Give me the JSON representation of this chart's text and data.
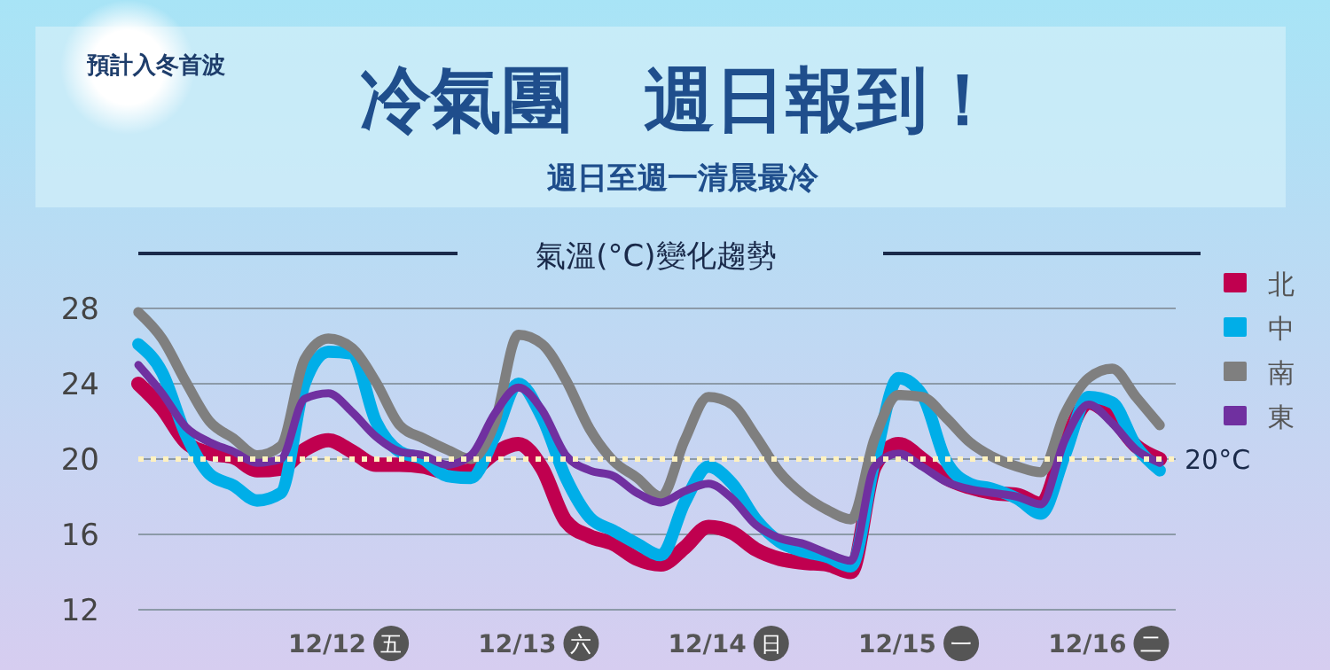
{
  "chart_data": {
    "type": "line",
    "title": "冷氣團　週日報到！",
    "subtitle": "週日至週一清晨最冷",
    "annotations": [
      "預計入冬首波",
      "氣溫(°C)變化趨勢"
    ],
    "categories": [
      null,
      null,
      null,
      null,
      null,
      null,
      null,
      null,
      null,
      "12/12 五",
      null,
      null,
      null,
      null,
      null,
      null,
      null,
      "12/13 六",
      null,
      null,
      null,
      null,
      null,
      null,
      null,
      "12/14 日",
      null,
      null,
      null,
      null,
      null,
      null,
      null,
      "12/15 一",
      null,
      null,
      null,
      null,
      null,
      null,
      null,
      "12/16 二",
      null,
      null
    ],
    "ylim": [
      12,
      28
    ],
    "yticks": [
      12,
      16,
      20,
      24,
      28
    ],
    "grid": "y",
    "legend": "top right",
    "line_style": "solid",
    "marker": "none",
    "ref_lines": [
      {
        "axis": "y",
        "value": 20,
        "label": "20°C",
        "color": "#fff2c0",
        "line_style": "dotted"
      }
    ],
    "series": [
      {
        "name": "北",
        "color": "#c0004f",
        "values": [
          24.0,
          22.7,
          20.9,
          20.3,
          20.1,
          19.4,
          19.5,
          20.5,
          21.0,
          20.4,
          19.7,
          19.7,
          19.6,
          19.3,
          19.4,
          20.3,
          20.8,
          19.5,
          16.7,
          15.9,
          15.5,
          14.7,
          14.4,
          15.3,
          16.4,
          16.1,
          15.2,
          14.7,
          14.5,
          14.4,
          14.0,
          19.6,
          20.8,
          20.0,
          19.0,
          18.5,
          18.2,
          18.1,
          17.6,
          20.8,
          23.0,
          22.2,
          20.7,
          20.0
        ]
      },
      {
        "name": "中",
        "color": "#00aee8",
        "values": [
          26.1,
          24.6,
          21.3,
          19.2,
          18.6,
          17.8,
          18.2,
          24.0,
          25.7,
          25.6,
          22.0,
          20.4,
          20.0,
          19.1,
          19.0,
          21.2,
          24.0,
          22.2,
          19.0,
          16.9,
          16.2,
          15.5,
          14.9,
          17.7,
          19.6,
          18.7,
          16.8,
          15.6,
          15.1,
          14.8,
          14.3,
          19.9,
          24.3,
          23.4,
          19.9,
          18.7,
          18.4,
          17.9,
          17.1,
          20.2,
          23.3,
          23.0,
          20.7,
          19.4
        ]
      },
      {
        "name": "南",
        "color": "#7f7f7f",
        "values": [
          27.8,
          26.4,
          24.1,
          22.0,
          21.1,
          20.2,
          20.7,
          25.3,
          26.4,
          25.9,
          24.1,
          21.8,
          21.1,
          20.5,
          20.0,
          21.9,
          26.6,
          26.1,
          24.2,
          21.6,
          19.9,
          19.0,
          18.0,
          21.0,
          23.3,
          22.9,
          21.2,
          19.3,
          18.1,
          17.3,
          16.8,
          21.1,
          23.4,
          23.3,
          22.2,
          20.9,
          20.1,
          19.6,
          19.3,
          22.4,
          24.3,
          24.8,
          23.3,
          21.8
        ]
      },
      {
        "name": "東",
        "color": "#7030a0",
        "values": [
          25.0,
          23.5,
          21.7,
          20.9,
          20.4,
          19.8,
          20.0,
          23.2,
          23.5,
          22.5,
          21.2,
          20.4,
          20.2,
          19.7,
          20.2,
          22.4,
          23.8,
          22.6,
          20.2,
          19.4,
          19.1,
          18.2,
          17.7,
          18.3,
          18.7,
          17.9,
          16.5,
          15.8,
          15.5,
          15.0,
          14.6,
          19.6,
          20.3,
          19.6,
          18.8,
          18.4,
          18.2,
          18.0,
          17.6,
          21.0,
          22.9,
          21.9,
          20.5,
          19.8
        ]
      }
    ]
  }
}
